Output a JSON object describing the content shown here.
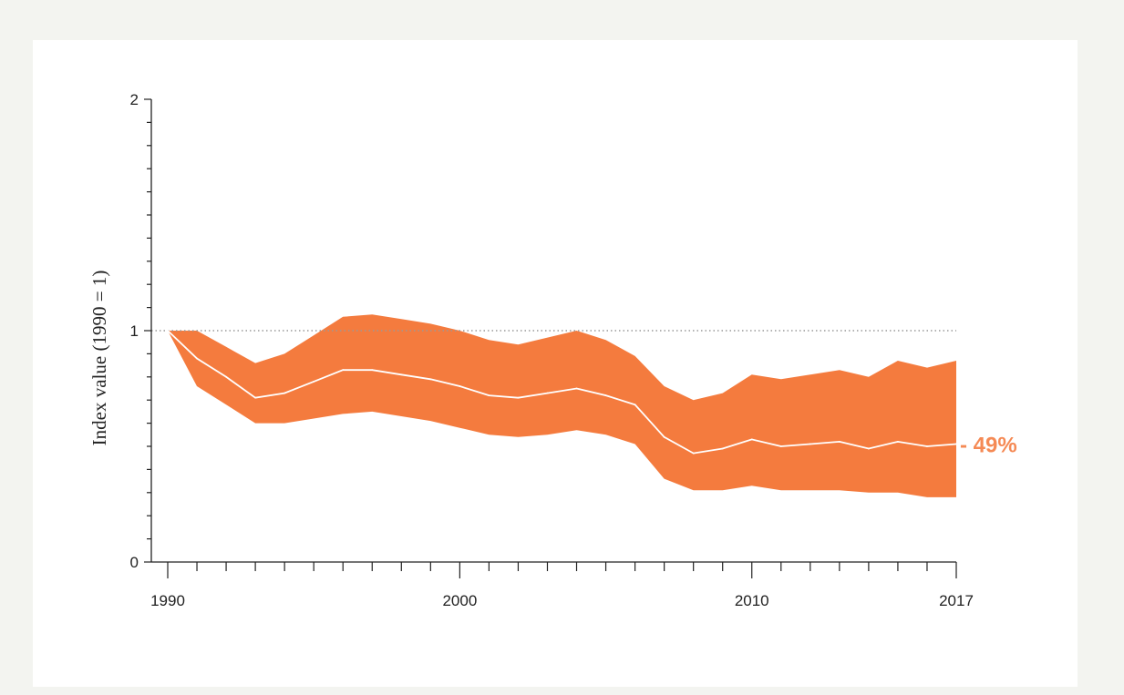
{
  "colors": {
    "band": "#f47b3e",
    "median": "#ffffff",
    "axis": "#222222",
    "reference": "#999999",
    "annotation": "#f58a55"
  },
  "chart_data": {
    "type": "area",
    "title": "",
    "xlabel": "",
    "ylabel": "Index value (1990 = 1)",
    "xlim": [
      1990,
      2017
    ],
    "ylim": [
      0,
      2
    ],
    "x_tick_labels": [
      "1990",
      "2000",
      "2010",
      "2017"
    ],
    "y_tick_labels": [
      "0",
      "1",
      "2"
    ],
    "reference_line": 1,
    "grid": false,
    "legend": "none",
    "x": [
      1990,
      1991,
      1992,
      1993,
      1994,
      1995,
      1996,
      1997,
      1998,
      1999,
      2000,
      2001,
      2002,
      2003,
      2004,
      2005,
      2006,
      2007,
      2008,
      2009,
      2010,
      2011,
      2012,
      2013,
      2014,
      2015,
      2016,
      2017
    ],
    "series": [
      {
        "role": "upper_bound",
        "values": [
          1.0,
          1.0,
          0.93,
          0.86,
          0.9,
          0.98,
          1.06,
          1.07,
          1.05,
          1.03,
          1.0,
          0.96,
          0.94,
          0.97,
          1.0,
          0.96,
          0.89,
          0.76,
          0.7,
          0.73,
          0.81,
          0.79,
          0.81,
          0.83,
          0.8,
          0.87,
          0.84,
          0.87
        ]
      },
      {
        "role": "median",
        "values": [
          1.0,
          0.88,
          0.8,
          0.71,
          0.73,
          0.78,
          0.83,
          0.83,
          0.81,
          0.79,
          0.76,
          0.72,
          0.71,
          0.73,
          0.75,
          0.72,
          0.68,
          0.54,
          0.47,
          0.49,
          0.53,
          0.5,
          0.51,
          0.52,
          0.49,
          0.52,
          0.5,
          0.51
        ]
      },
      {
        "role": "lower_bound",
        "values": [
          1.0,
          0.76,
          0.68,
          0.6,
          0.6,
          0.62,
          0.64,
          0.65,
          0.63,
          0.61,
          0.58,
          0.55,
          0.54,
          0.55,
          0.57,
          0.55,
          0.51,
          0.36,
          0.31,
          0.31,
          0.33,
          0.31,
          0.31,
          0.31,
          0.3,
          0.3,
          0.28,
          0.28
        ]
      }
    ],
    "annotation": {
      "text": "- 49%",
      "x": 2017,
      "y": 0.51
    }
  }
}
